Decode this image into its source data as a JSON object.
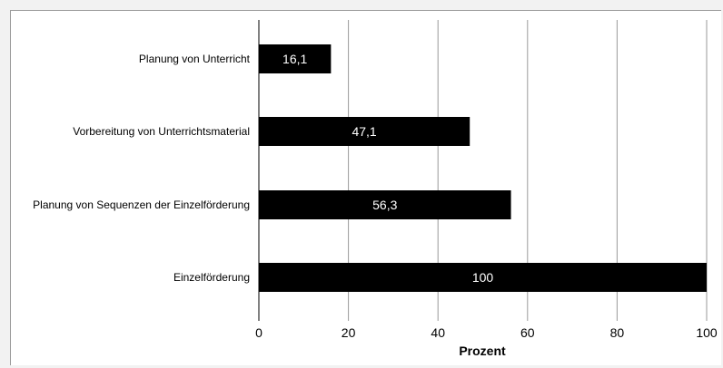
{
  "chart_data": {
    "type": "bar",
    "orientation": "horizontal",
    "categories": [
      "Planung von Unterricht",
      "Vorbereitung von Unterrichtsmaterial",
      "Planung von Sequenzen der Einzelförderung",
      "Einzelförderung"
    ],
    "values": [
      16.1,
      47.1,
      56.3,
      100
    ],
    "data_labels": [
      "16,1",
      "47,1",
      "56,3",
      "100"
    ],
    "xlabel": "Prozent",
    "ylabel": "",
    "xlim": [
      0,
      100
    ],
    "x_ticks": [
      0,
      20,
      40,
      60,
      80,
      100
    ],
    "x_tick_labels": [
      "0",
      "20",
      "40",
      "60",
      "80",
      "100"
    ],
    "grid": "vertical",
    "legend": "none",
    "bar_color": "#000000",
    "label_color": "#ffffff"
  }
}
